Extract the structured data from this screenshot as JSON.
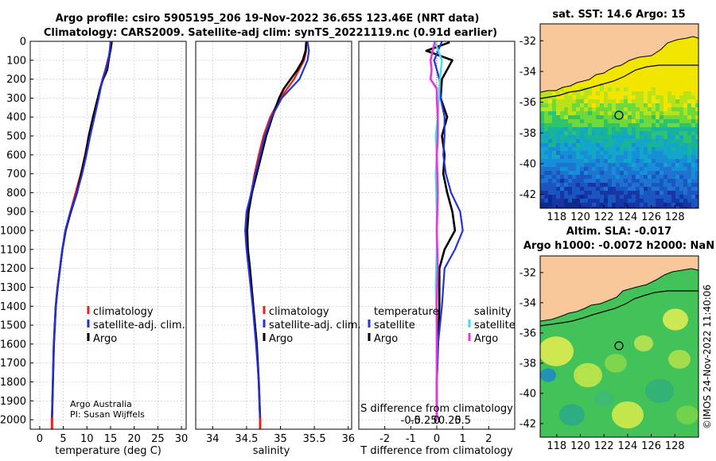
{
  "titles": {
    "line1": "Argo profile: csiro 5905195_206 19-Nov-2022 36.65S 123.46E (NRT data)",
    "line2": "Climatology: CARS2009. Satellite-adj clim: synTS_20221119.nc (0.91d earlier)"
  },
  "colors": {
    "climatology": "#e8231e",
    "satellite_adj": "#2233dd",
    "argo": "#000000",
    "sat_temp": "#3fe0e8",
    "argo_sal": "#e23ad6"
  },
  "chart_data": [
    {
      "type": "line",
      "name": "temperature",
      "xlabel": "temperature (deg C)",
      "ylabel": "",
      "xlim": [
        -2,
        31
      ],
      "ylim": [
        0,
        2050
      ],
      "x_ticks": [
        0,
        5,
        10,
        15,
        20,
        25,
        30
      ],
      "y_ticks": [
        0,
        100,
        200,
        300,
        400,
        500,
        600,
        700,
        800,
        900,
        1000,
        1100,
        1200,
        1300,
        1400,
        1500,
        1600,
        1700,
        1800,
        1900,
        2000
      ],
      "legend": [
        "climatology",
        "satellite-adj. clim.",
        "Argo"
      ],
      "legend_position": "lower-right",
      "annotations": [
        "Argo Australia",
        "PI: Susan Wijffels"
      ],
      "series": [
        {
          "name": "climatology",
          "depth": [
            0,
            50,
            100,
            150,
            200,
            300,
            400,
            500,
            600,
            700,
            800,
            900,
            1000,
            1100,
            1200,
            1300,
            1400,
            1600,
            1800,
            2000,
            2050
          ],
          "values": [
            15.3,
            15.0,
            14.4,
            13.9,
            13.3,
            12.3,
            11.3,
            10.4,
            9.6,
            8.7,
            7.6,
            6.5,
            5.5,
            4.8,
            4.3,
            3.8,
            3.4,
            3.0,
            2.8,
            2.6,
            2.6
          ]
        },
        {
          "name": "satellite-adj. clim.",
          "depth": [
            0,
            50,
            100,
            150,
            200,
            300,
            400,
            500,
            600,
            700,
            800,
            900,
            1000,
            1100,
            1200,
            1300,
            1400,
            1600,
            1800,
            2000,
            2050
          ],
          "values": [
            15.0,
            14.8,
            14.5,
            14.0,
            13.3,
            12.5,
            11.6,
            10.7,
            9.9,
            9.0,
            7.9,
            6.5,
            5.4,
            4.8,
            4.3,
            3.8,
            3.4,
            3.0,
            2.8,
            2.6,
            2.6
          ]
        },
        {
          "name": "Argo",
          "depth": [
            5,
            50,
            100,
            150,
            180,
            200,
            250,
            300,
            400,
            500,
            600,
            700,
            800,
            900,
            1000,
            1100,
            1200,
            1300,
            1400,
            1600,
            1800,
            2000
          ],
          "values": [
            15.2,
            14.9,
            14.6,
            14.3,
            13.8,
            13.4,
            12.8,
            12.3,
            11.3,
            10.4,
            9.7,
            8.8,
            7.9,
            6.6,
            5.5,
            4.8,
            4.3,
            3.8,
            3.4,
            3.0,
            2.8,
            2.6
          ]
        }
      ]
    },
    {
      "type": "line",
      "name": "salinity",
      "xlabel": "salinity",
      "xlim": [
        33.75,
        36.05
      ],
      "ylim": [
        0,
        2050
      ],
      "x_ticks": [
        34,
        34.5,
        35,
        35.5,
        36
      ],
      "legend": [
        "climatology",
        "satellite-adj. clim.",
        "Argo"
      ],
      "legend_position": "lower-right",
      "series": [
        {
          "name": "climatology",
          "depth": [
            0,
            50,
            100,
            200,
            300,
            400,
            500,
            600,
            700,
            800,
            900,
            1000,
            1100,
            1200,
            1400,
            1600,
            1800,
            2000,
            2050
          ],
          "values": [
            35.38,
            35.38,
            35.35,
            35.2,
            35.0,
            34.85,
            34.75,
            34.68,
            34.62,
            34.57,
            34.52,
            34.5,
            34.52,
            34.55,
            34.6,
            34.65,
            34.68,
            34.7,
            34.7
          ]
        },
        {
          "name": "satellite-adj. clim.",
          "depth": [
            0,
            50,
            100,
            200,
            300,
            400,
            500,
            600,
            700,
            800,
            900,
            1000,
            1100,
            1200,
            1400,
            1600,
            1800,
            2000,
            2050
          ],
          "values": [
            35.4,
            35.42,
            35.4,
            35.28,
            35.02,
            34.87,
            34.77,
            34.7,
            34.63,
            34.57,
            34.5,
            34.48,
            34.5,
            34.53,
            34.59,
            34.64,
            34.68,
            34.7,
            34.7
          ]
        },
        {
          "name": "Argo",
          "depth": [
            5,
            50,
            100,
            150,
            200,
            250,
            300,
            400,
            500,
            600,
            700,
            800,
            900,
            1000,
            1100,
            1200,
            1400,
            1600,
            1800,
            2000
          ],
          "values": [
            35.38,
            35.37,
            35.33,
            35.25,
            35.15,
            35.05,
            34.98,
            34.88,
            34.79,
            34.72,
            34.65,
            34.58,
            34.53,
            34.51,
            34.52,
            34.55,
            34.6,
            34.65,
            34.68,
            34.7
          ]
        }
      ]
    },
    {
      "type": "line",
      "name": "difference from climatology",
      "xlabel": "T difference from climatology",
      "xlabel_top": "S difference from climatology",
      "xlim": [
        -3,
        3
      ],
      "ylim": [
        0,
        2050
      ],
      "x_ticks": [
        -2,
        -1,
        0,
        1,
        2
      ],
      "x_ticks_top": [
        "-0.5",
        "-0.25",
        "0",
        "0.25",
        "0.5"
      ],
      "legend_temperature_title": "temperature",
      "legend_salinity_title": "salinity",
      "legend_temperature": [
        "satellite",
        "Argo"
      ],
      "legend_salinity": [
        "satellite",
        "Argo"
      ],
      "series": [
        {
          "name": "T satellite",
          "depth": [
            0,
            100,
            200,
            300,
            400,
            500,
            600,
            700,
            800,
            900,
            1000,
            1100,
            1200,
            1400,
            1600,
            1800,
            2000
          ],
          "values": [
            0.2,
            -0.1,
            0.1,
            0.15,
            0.3,
            0.3,
            0.25,
            0.35,
            0.55,
            0.9,
            1.0,
            0.7,
            0.3,
            0.2,
            0.05,
            0.0,
            0.0
          ]
        },
        {
          "name": "T Argo",
          "depth": [
            5,
            50,
            100,
            200,
            300,
            400,
            500,
            600,
            700,
            800,
            900,
            1000,
            1100,
            1200,
            1400,
            1600,
            1800,
            2000
          ],
          "values": [
            0.5,
            -0.4,
            0.6,
            0.2,
            0.15,
            0.4,
            0.2,
            0.3,
            0.25,
            0.4,
            0.6,
            0.7,
            0.3,
            0.1,
            0.1,
            0.05,
            0.0,
            0.0
          ]
        },
        {
          "name": "S satellite",
          "depth": [
            0,
            100,
            200,
            300,
            400,
            500,
            600,
            700,
            900,
            1100,
            1300,
            1500,
            1700,
            1900,
            2000
          ],
          "values": [
            -0.02,
            0.05,
            0.03,
            0.02,
            0.01,
            -0.01,
            0.0,
            -0.01,
            0.0,
            0.0,
            -0.01,
            0.0,
            0.0,
            0.0,
            0.0
          ]
        },
        {
          "name": "S Argo",
          "depth": [
            5,
            50,
            100,
            150,
            200,
            250,
            300,
            400,
            500,
            600,
            800,
            1000,
            1200,
            1400,
            1600,
            1800,
            2000
          ],
          "values": [
            -0.02,
            -0.04,
            -0.06,
            -0.05,
            -0.06,
            0.0,
            0.0,
            0.01,
            0.01,
            0.0,
            0.01,
            0.0,
            0.01,
            0.0,
            0.0,
            0.0,
            0.0
          ]
        }
      ]
    },
    {
      "type": "heatmap",
      "name": "sst map",
      "title": "sat. SST: 14.6 Argo: 15",
      "x_ticks": [
        118,
        120,
        122,
        124,
        126,
        128
      ],
      "y_ticks": [
        -32,
        -34,
        -36,
        -38,
        -40,
        -42
      ],
      "xlim": [
        116.6,
        130.0
      ],
      "ylim": [
        -42.9,
        -30.9
      ],
      "argo_position": {
        "lon": 123.46,
        "lat": -36.65
      }
    },
    {
      "type": "heatmap",
      "name": "sla map",
      "title_line1": "Altim. SLA: -0.017",
      "title_line2": "Argo h1000: -0.0072 h2000: NaN",
      "x_ticks": [
        118,
        120,
        122,
        124,
        126,
        128
      ],
      "y_ticks": [
        -32,
        -34,
        -36,
        -38,
        -40,
        -42
      ],
      "xlim": [
        116.6,
        130.0
      ],
      "ylim": [
        -42.9,
        -30.9
      ],
      "argo_position": {
        "lon": 123.46,
        "lat": -36.65
      }
    }
  ],
  "legend_labels": {
    "climatology": "climatology",
    "satellite_adj": "satellite-adj. clim.",
    "argo": "Argo",
    "temperature": "temperature",
    "salinity": "salinity",
    "satellite": "satellite"
  },
  "credit": {
    "line1": "Argo Australia",
    "line2": "PI: Susan Wijffels"
  },
  "copyright": "©IMOS 24-Nov-2022 11:40:06"
}
